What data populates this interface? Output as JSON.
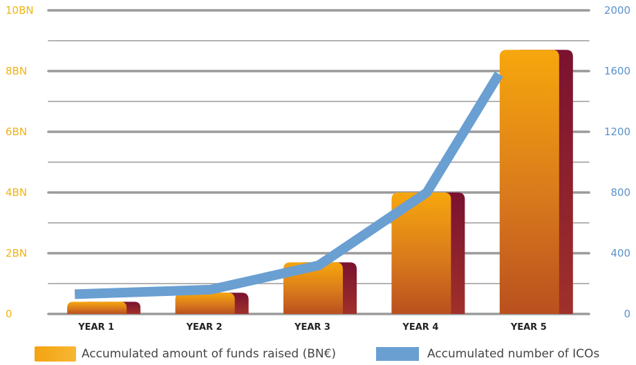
{
  "chart_data": {
    "type": "bar",
    "categories": [
      "YEAR 1",
      "YEAR 2",
      "YEAR 3",
      "YEAR 4",
      "YEAR 5"
    ],
    "series": [
      {
        "name": "Accumulated amount of funds raised (BN€)",
        "type": "bar",
        "axis": "left",
        "values": [
          0.4,
          0.7,
          1.7,
          4.0,
          8.7
        ],
        "color": "#f3a312",
        "shadow_color": "#8e1b2a"
      },
      {
        "name": "Accumulated number of ICOs",
        "type": "line",
        "axis": "right",
        "values": [
          130,
          160,
          320,
          800,
          1580
        ],
        "color": "#6a9fd2"
      }
    ],
    "left_axis": {
      "ylim": [
        0,
        10
      ],
      "ticks": [
        {
          "value": 0,
          "label": "0"
        },
        {
          "value": 2,
          "label": "2BN"
        },
        {
          "value": 4,
          "label": "4BN"
        },
        {
          "value": 6,
          "label": "6BN"
        },
        {
          "value": 8,
          "label": "8BN"
        },
        {
          "value": 10,
          "label": "10BN"
        }
      ],
      "color": "#f0b412"
    },
    "right_axis": {
      "ylim": [
        0,
        2000
      ],
      "ticks": [
        {
          "value": 0,
          "label": "0"
        },
        {
          "value": 400,
          "label": "400"
        },
        {
          "value": 800,
          "label": "800"
        },
        {
          "value": 1200,
          "label": "1200"
        },
        {
          "value": 1600,
          "label": "1600"
        },
        {
          "value": 2000,
          "label": "2000"
        }
      ],
      "color": "#5a92cc"
    },
    "grid": true,
    "grid_color": "#9a9a9a",
    "legend_position": "bottom"
  },
  "legend": {
    "bar_label": "Accumulated amount of funds raised (BN€)",
    "line_label": "Accumulated number of ICOs"
  }
}
